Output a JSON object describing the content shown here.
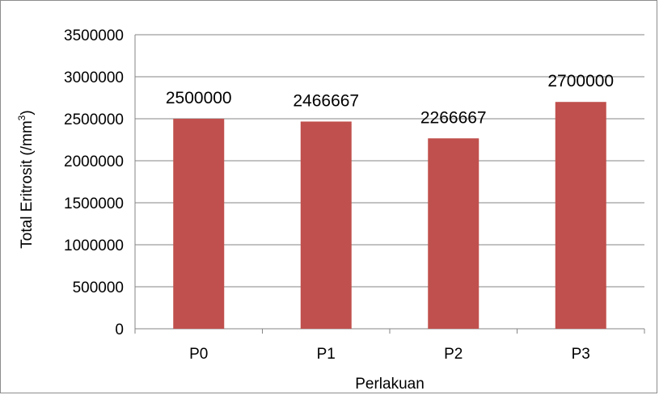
{
  "chart_data": {
    "type": "bar",
    "categories": [
      "P0",
      "P1",
      "P2",
      "P3"
    ],
    "values": [
      2500000,
      2466667,
      2266667,
      2700000
    ],
    "data_labels": [
      "2500000",
      "2466667",
      "2266667",
      "2700000"
    ],
    "xlabel": "Perlakuan",
    "ylabel": "Total Eritrosit (/mm",
    "ylabel_sup": "3",
    "ylabel_end": ")",
    "ylim": [
      0,
      3500000
    ],
    "yticks": [
      "0",
      "500000",
      "1000000",
      "1500000",
      "2000000",
      "2500000",
      "3000000",
      "3500000"
    ],
    "ytick_values": [
      0,
      500000,
      1000000,
      1500000,
      2000000,
      2500000,
      3000000,
      3500000
    ],
    "grid": true,
    "legend": "none",
    "bar_color": "#c0504d",
    "grid_color": "#868686"
  }
}
